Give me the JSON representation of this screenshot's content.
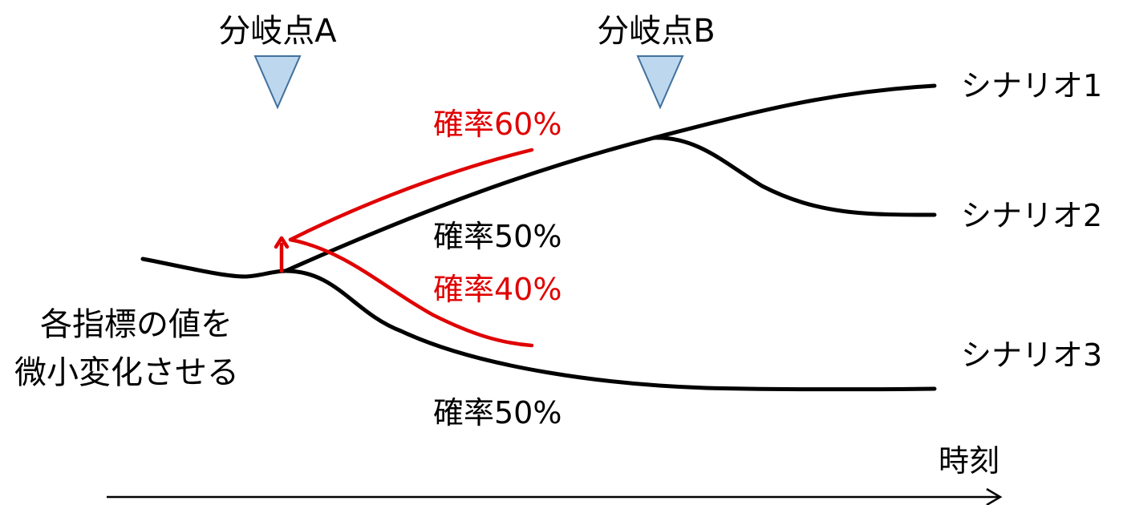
{
  "branch_points": {
    "a": {
      "label": "分岐点A"
    },
    "b": {
      "label": "分岐点B"
    }
  },
  "probabilities": {
    "perturbed_upper": "確率60%",
    "perturbed_lower": "確率40%",
    "base_upper": "確率50%",
    "base_lower": "確率50%"
  },
  "scenarios": [
    "シナリオ1",
    "シナリオ2",
    "シナリオ3"
  ],
  "perturbation_note": {
    "line1": "各指標の値を",
    "line2": "微小変化させる"
  },
  "time_axis": {
    "label": "時刻"
  },
  "colors": {
    "base_path": "#000000",
    "perturbed_path": "#e00000",
    "marker_fill": "#bdd7ee",
    "marker_stroke": "#41719c"
  }
}
